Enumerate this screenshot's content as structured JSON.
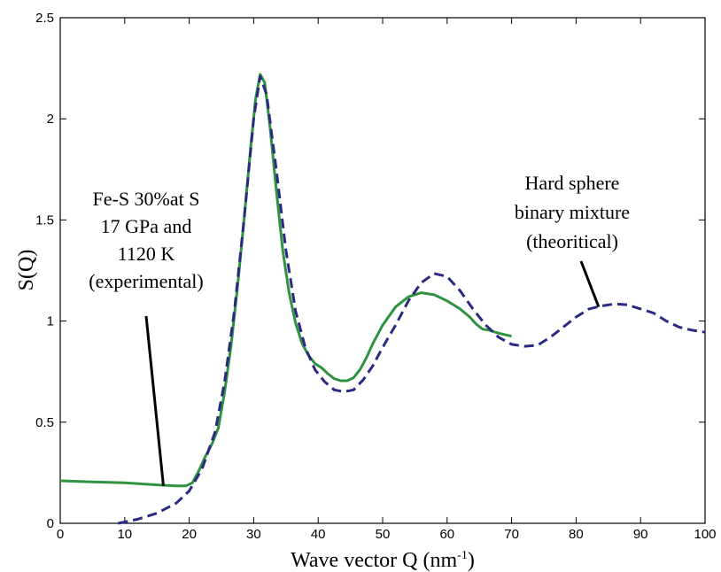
{
  "chart_data": {
    "type": "line",
    "title": "",
    "xlabel": "Wave vector Q (nm",
    "xlabel_sup": "-1",
    "xlabel_close": ")",
    "ylabel": "S(Q)",
    "xlim": [
      0,
      100
    ],
    "ylim": [
      0,
      2.5
    ],
    "xticks": [
      0,
      10,
      20,
      30,
      40,
      50,
      60,
      70,
      80,
      90,
      100
    ],
    "yticks": [
      0,
      0.5,
      1,
      1.5,
      2,
      2.5
    ],
    "grid": false,
    "legend": "none",
    "series": [
      {
        "style": "solid",
        "color": "#2e9340",
        "x": [
          0,
          5,
          10,
          15,
          18,
          19.5,
          20.5,
          21.5,
          22.5,
          23.5,
          24.5,
          25.5,
          26.5,
          27.5,
          28.5,
          29.5,
          30.3,
          31,
          31.7,
          32.5,
          33.5,
          34.5,
          35.5,
          36.5,
          37.5,
          38.5,
          39.5,
          40.5,
          41.5,
          42.5,
          43.5,
          44.5,
          45.5,
          46.5,
          47.5,
          48.5,
          50,
          52,
          54,
          56,
          58,
          60,
          62,
          63.5,
          64.5,
          65.5,
          66.5,
          68,
          70
        ],
        "y": [
          0.21,
          0.205,
          0.2,
          0.19,
          0.185,
          0.185,
          0.2,
          0.26,
          0.33,
          0.39,
          0.47,
          0.65,
          0.88,
          1.17,
          1.5,
          1.85,
          2.1,
          2.22,
          2.18,
          1.97,
          1.65,
          1.35,
          1.14,
          0.99,
          0.89,
          0.83,
          0.79,
          0.77,
          0.74,
          0.715,
          0.705,
          0.705,
          0.72,
          0.76,
          0.82,
          0.89,
          0.98,
          1.07,
          1.12,
          1.14,
          1.13,
          1.1,
          1.06,
          1.02,
          0.985,
          0.96,
          0.955,
          0.94,
          0.925
        ]
      },
      {
        "style": "dashed",
        "color": "#2b2a82",
        "x": [
          9,
          12,
          15,
          18,
          20,
          22,
          24,
          25.5,
          27,
          28.5,
          30,
          31,
          32,
          33.5,
          35,
          36.5,
          38,
          39.5,
          41,
          42.5,
          44,
          45.5,
          47,
          48.5,
          50,
          52,
          54,
          56,
          58,
          60,
          62,
          64,
          66,
          68,
          70,
          72,
          74,
          76,
          78,
          80,
          82,
          84,
          86,
          88,
          90,
          92,
          94,
          96,
          98,
          100
        ],
        "y": [
          0.0,
          0.02,
          0.05,
          0.1,
          0.16,
          0.27,
          0.45,
          0.7,
          1.05,
          1.5,
          2.0,
          2.21,
          2.12,
          1.75,
          1.35,
          1.05,
          0.87,
          0.76,
          0.7,
          0.66,
          0.65,
          0.66,
          0.71,
          0.78,
          0.87,
          0.98,
          1.1,
          1.19,
          1.235,
          1.22,
          1.15,
          1.06,
          0.98,
          0.92,
          0.885,
          0.875,
          0.88,
          0.92,
          0.97,
          1.02,
          1.06,
          1.075,
          1.085,
          1.08,
          1.06,
          1.04,
          1.0,
          0.97,
          0.955,
          0.945
        ]
      }
    ],
    "annotations": [
      {
        "lines": [
          "Fe-S 30%at S",
          "17 GPa and",
          "1120 K",
          "(experimental)"
        ],
        "point_x": 16,
        "point_y": 0.185
      },
      {
        "lines": [
          "Hard sphere",
          "binary mixture",
          "(theoritical)"
        ],
        "point_x": 83.5,
        "point_y": 1.07
      }
    ]
  }
}
